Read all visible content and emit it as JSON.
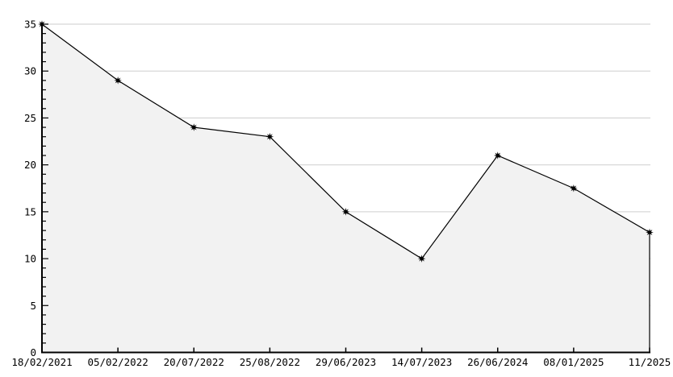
{
  "chart_data": {
    "type": "area",
    "title": "",
    "xlabel": "",
    "ylabel": "",
    "categories": [
      "18/02/2021",
      "05/02/2022",
      "20/07/2022",
      "25/08/2022",
      "29/06/2023",
      "14/07/2023",
      "26/06/2024",
      "08/01/2025",
      "11/2025"
    ],
    "values": [
      35,
      29,
      24,
      23,
      15,
      10,
      21,
      17.5,
      12.8
    ],
    "ylim": [
      0,
      35
    ],
    "ytick_step": 5,
    "y_minor_tick_step": 1,
    "ytick_labels": [
      "0",
      "5",
      "10",
      "15",
      "20",
      "25",
      "30",
      "35"
    ],
    "grid": "horizontal-major",
    "legend_position": "none",
    "marker_style": "black-star",
    "colors": {
      "line": "#000000",
      "area_fill": "#f2f2f2",
      "grid": "#d8d8d8",
      "axis": "#000000",
      "text": "#000000",
      "background": "#ffffff"
    }
  }
}
